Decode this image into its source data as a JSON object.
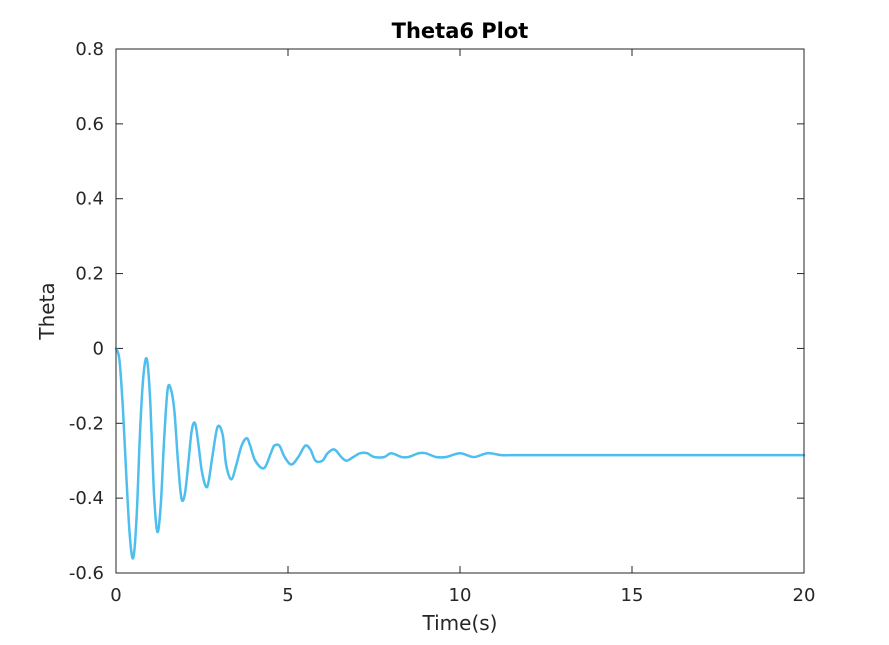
{
  "chart_data": {
    "type": "line",
    "title": "Theta6 Plot",
    "xlabel": "Time(s)",
    "ylabel": "Theta",
    "xlim": [
      0,
      20
    ],
    "ylim": [
      -0.6,
      0.8
    ],
    "xticks": [
      "0",
      "5",
      "10",
      "15",
      "20"
    ],
    "yticks": [
      "-0.6",
      "-0.4",
      "-0.2",
      "0",
      "0.2",
      "0.4",
      "0.6",
      "0.8"
    ],
    "grid": false,
    "line_color": "#4DBEEE",
    "series": [
      {
        "x": [
          0,
          0.1,
          0.2,
          0.3,
          0.4,
          0.5,
          0.6,
          0.7,
          0.8,
          0.9,
          1.0,
          1.1,
          1.2,
          1.3,
          1.4,
          1.5,
          1.6,
          1.7,
          1.8,
          1.9,
          2.0,
          2.1,
          2.2,
          2.3,
          2.4,
          2.5,
          2.65,
          2.8,
          2.95,
          3.1,
          3.2,
          3.35,
          3.5,
          3.65,
          3.8,
          3.9,
          4.05,
          4.3,
          4.5,
          4.6,
          4.75,
          4.9,
          5.1,
          5.3,
          5.5,
          5.65,
          5.8,
          6.0,
          6.15,
          6.35,
          6.55,
          6.7,
          6.9,
          7.1,
          7.3,
          7.5,
          7.8,
          8.0,
          8.3,
          8.5,
          8.8,
          9.0,
          9.3,
          9.6,
          10.0,
          10.4,
          10.8,
          11.2,
          11.6,
          12.0,
          12.5,
          13.0,
          13.5,
          14.0,
          15.0,
          16.0,
          17.0,
          18.0,
          19.0,
          20.0
        ],
        "y": [
          0.0,
          -0.03,
          -0.16,
          -0.34,
          -0.5,
          -0.56,
          -0.45,
          -0.22,
          -0.07,
          -0.03,
          -0.15,
          -0.38,
          -0.49,
          -0.42,
          -0.24,
          -0.11,
          -0.11,
          -0.17,
          -0.3,
          -0.4,
          -0.39,
          -0.31,
          -0.22,
          -0.2,
          -0.26,
          -0.33,
          -0.37,
          -0.29,
          -0.21,
          -0.23,
          -0.31,
          -0.35,
          -0.31,
          -0.26,
          -0.24,
          -0.26,
          -0.3,
          -0.32,
          -0.28,
          -0.26,
          -0.26,
          -0.29,
          -0.31,
          -0.29,
          -0.26,
          -0.27,
          -0.3,
          -0.3,
          -0.28,
          -0.27,
          -0.29,
          -0.3,
          -0.29,
          -0.28,
          -0.28,
          -0.29,
          -0.29,
          -0.28,
          -0.29,
          -0.29,
          -0.28,
          -0.28,
          -0.29,
          -0.29,
          -0.28,
          -0.29,
          -0.28,
          -0.285,
          -0.285,
          -0.285,
          -0.285,
          -0.285,
          -0.285,
          -0.285,
          -0.285,
          -0.285,
          -0.285,
          -0.285,
          -0.285,
          -0.285
        ]
      }
    ]
  }
}
